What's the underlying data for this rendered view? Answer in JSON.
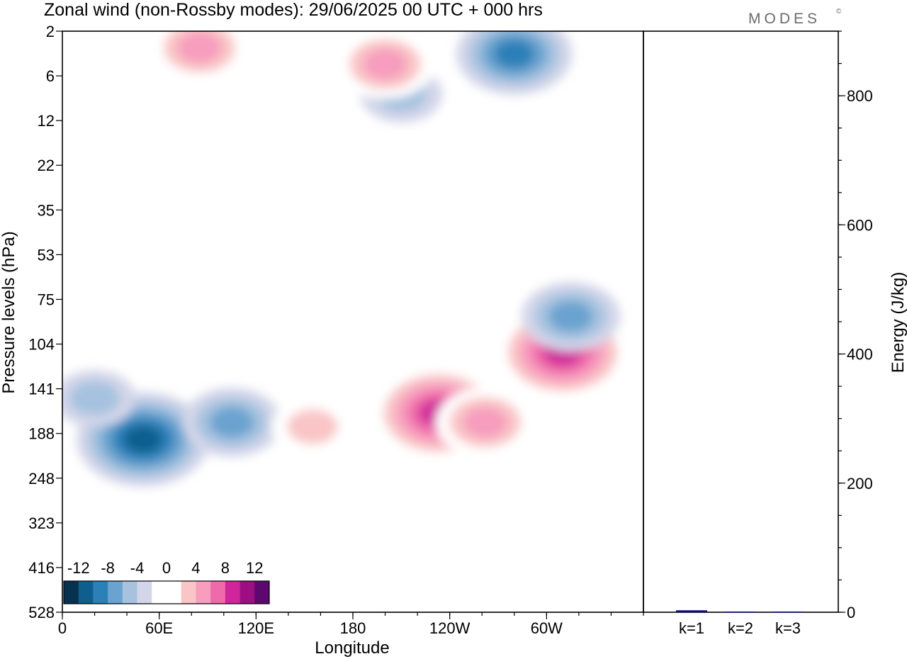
{
  "title": "Zonal wind (non-Rossby modes):  29/06/2025  00 UTC  + 000 hrs",
  "brand": "MODES",
  "brand_mark": "©",
  "chart_data": [
    {
      "type": "heatmap",
      "title": "Zonal wind (non-Rossby modes):  29/06/2025  00 UTC  + 000 hrs",
      "xlabel": "Longitude",
      "ylabel": "Pressure levels (hPa)",
      "x_ticks": [
        "0",
        "60E",
        "120E",
        "180",
        "120W",
        "60W"
      ],
      "y_ticks": [
        "2",
        "6",
        "12",
        "22",
        "35",
        "53",
        "75",
        "104",
        "141",
        "188",
        "248",
        "323",
        "416",
        "528"
      ],
      "colorbar": {
        "labels": [
          "-12",
          "-8",
          "-4",
          "0",
          "4",
          "8",
          "12"
        ],
        "colors": [
          "#08304f",
          "#0e5f8e",
          "#2b80b8",
          "#6aa3cf",
          "#a6c2df",
          "#d3d6e9",
          "#ffffff",
          "#ffffff",
          "#f9c5c6",
          "#f79dbe",
          "#ef6aa9",
          "#d0269b",
          "#9c0f82",
          "#5d086f"
        ]
      },
      "features": [
        {
          "lon": 50,
          "p": 195,
          "value": -12
        },
        {
          "lon": 20,
          "p": 150,
          "value": -6
        },
        {
          "lon": 105,
          "p": 175,
          "value": -7
        },
        {
          "lon": 280,
          "p": 3.5,
          "value": -10
        },
        {
          "lon": 210,
          "p": 8,
          "value": -6
        },
        {
          "lon": 85,
          "p": 3,
          "value": 7
        },
        {
          "lon": 200,
          "p": 4.5,
          "value": 7
        },
        {
          "lon": 233,
          "p": 165,
          "value": 11
        },
        {
          "lon": 262,
          "p": 175,
          "value": 8
        },
        {
          "lon": 310,
          "p": 110,
          "value": 11
        },
        {
          "lon": 155,
          "p": 180,
          "value": 6
        },
        {
          "lon": 315,
          "p": 85,
          "value": -8
        }
      ]
    },
    {
      "type": "bar",
      "categories": [
        "k=1",
        "k=2",
        "k=3"
      ],
      "values": [
        3,
        1,
        1
      ],
      "ylabel": "Energy (J/kg)",
      "ylim": [
        0,
        900
      ],
      "y_ticks": [
        0,
        200,
        400,
        600,
        800
      ],
      "bar_color": "#0b0b8a"
    }
  ]
}
